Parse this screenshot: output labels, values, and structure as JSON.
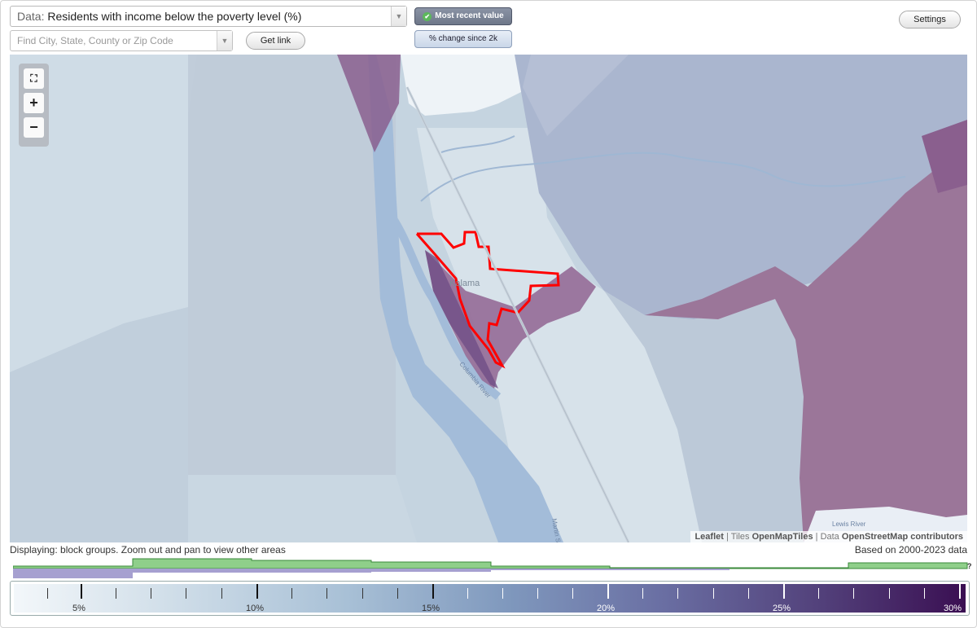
{
  "data_selector": {
    "label": "Data:",
    "value": "Residents with income below the poverty level (%)"
  },
  "search": {
    "placeholder": "Find City, State, County or Zip Code"
  },
  "buttons": {
    "get_link": "Get link",
    "settings": "Settings"
  },
  "mode": {
    "active": "Most recent value",
    "inactive": "% change since 2k"
  },
  "map": {
    "place_labels": [
      "Kalama"
    ],
    "road_labels": [
      "Columbia River",
      "Martin Slough"
    ],
    "river_labels": [
      "Lewis River"
    ]
  },
  "attribution": {
    "leaflet": "Leaflet",
    "tiles_prefix": "Tiles",
    "tiles": "OpenMapTiles",
    "data_prefix": "Data",
    "data": "OpenStreetMap contributors"
  },
  "status": {
    "displaying": "Displaying: block groups. Zoom out and pan to view other areas",
    "based_on": "Based on 2000-2023 data",
    "help": "?"
  },
  "legend": {
    "labels": [
      "5%",
      "10%",
      "15%",
      "20%",
      "25%",
      "30%"
    ]
  },
  "colors": {
    "highlight": "#ff0000",
    "high_poverty": "#8a5f8e",
    "histogram_green": "#8fcf8a",
    "histogram_purple": "#a6a0d0"
  }
}
